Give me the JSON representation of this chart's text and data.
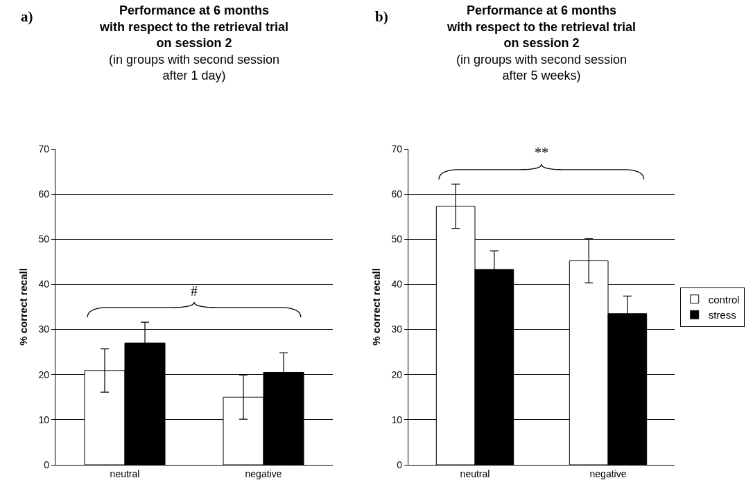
{
  "chart_data": [
    {
      "type": "bar",
      "title": "Performance at 6 months\nwith respect to the retrieval trial\non session 2",
      "subtitle": "(in groups with second session\nafter 1 day)",
      "ylabel": "% correct recall",
      "categories": [
        "neutral",
        "negative"
      ],
      "series": [
        {
          "color": "#ffffff",
          "values": [
            20.9,
            15
          ],
          "errors": [
            4.8,
            4.9
          ]
        },
        {
          "color": "#000000",
          "values": [
            27,
            20.5
          ],
          "errors": [
            4.6,
            4.3
          ]
        }
      ],
      "ylim": [
        0,
        70
      ],
      "yticks": [
        0,
        10,
        20,
        30,
        40,
        50,
        60,
        70
      ],
      "grid": "y",
      "legend": false,
      "annotations": [
        "a)",
        "#"
      ]
    },
    {
      "type": "bar",
      "title": "Performance at 6 months\nwith respect to the retrieval trial\non session 2",
      "subtitle": "(in groups with second session\nafter 5 weeks)",
      "ylabel": "% correct recall",
      "categories": [
        "neutral",
        "negative"
      ],
      "series": [
        {
          "name": "control",
          "color": "#ffffff",
          "values": [
            57.3,
            45.2
          ],
          "errors": [
            4.9,
            4.9
          ]
        },
        {
          "name": "stress",
          "color": "#000000",
          "values": [
            43.3,
            33.5
          ],
          "errors": [
            4.1,
            3.9
          ]
        }
      ],
      "ylim": [
        0,
        70
      ],
      "yticks": [
        0,
        10,
        20,
        30,
        40,
        50,
        60,
        70
      ],
      "grid": "y",
      "legend": "right",
      "annotations": [
        "b)",
        "**"
      ]
    }
  ]
}
